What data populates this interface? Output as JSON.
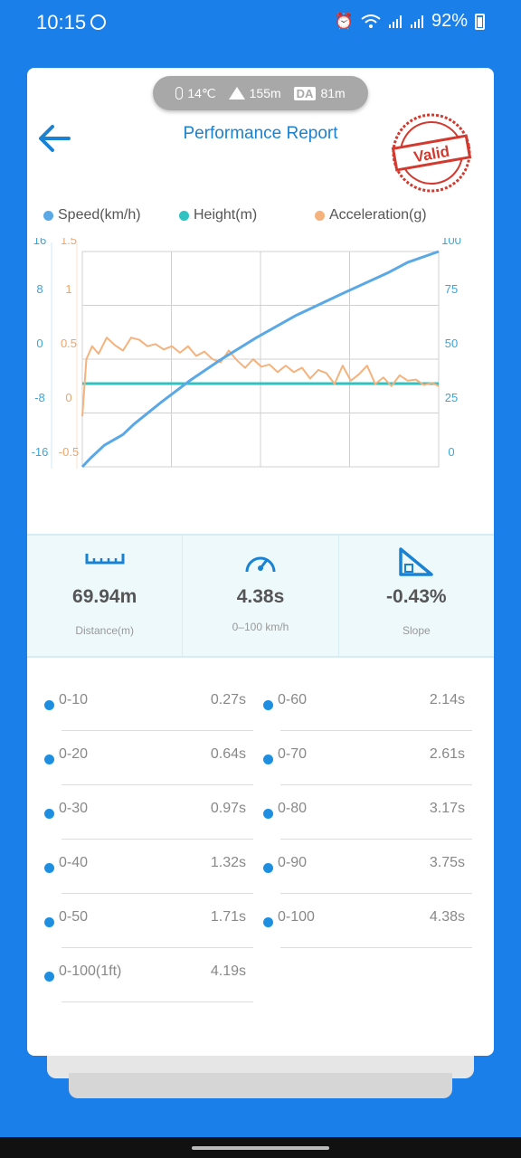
{
  "status_bar": {
    "time": "10:15",
    "battery": "92%",
    "icons": [
      "alarm-icon",
      "wifi-icon",
      "signal-icon",
      "signal-roaming-icon",
      "battery-icon"
    ]
  },
  "weather": {
    "temperature": "14℃",
    "altitude": "155m",
    "density_altitude_badge": "DA",
    "density_altitude": "81m"
  },
  "header": {
    "title": "Performance Report",
    "stamp_text": "Valid"
  },
  "colors": {
    "speed": "#5aa8e6",
    "height": "#30c1c1",
    "acceleration": "#f5b27c",
    "accent": "#1a82d2",
    "background": "#1a7fe8"
  },
  "chart_data": {
    "type": "line",
    "series": [
      {
        "name": "Speed(km/h)",
        "axis": "right",
        "x": [
          0,
          0.1,
          0.27,
          0.5,
          0.64,
          0.97,
          1.32,
          1.71,
          2.14,
          2.61,
          3.17,
          3.75,
          4.0,
          4.38
        ],
        "y": [
          0,
          4,
          10,
          15,
          20,
          30,
          40,
          50,
          60,
          70,
          80,
          90,
          95,
          100
        ]
      },
      {
        "name": "Height(m)",
        "axis": "left",
        "x": [
          0,
          4.38
        ],
        "y": [
          0,
          0
        ]
      },
      {
        "name": "Acceleration(g)",
        "axis": "left-inner",
        "x": [
          0,
          0.05,
          0.12,
          0.2,
          0.3,
          0.4,
          0.5,
          0.6,
          0.7,
          0.8,
          0.9,
          1.0,
          1.1,
          1.2,
          1.3,
          1.4,
          1.5,
          1.6,
          1.7,
          1.8,
          1.9,
          2.0,
          2.1,
          2.2,
          2.3,
          2.4,
          2.5,
          2.6,
          2.7,
          2.8,
          2.9,
          3.0,
          3.1,
          3.2,
          3.3,
          3.4,
          3.5,
          3.6,
          3.7,
          3.8,
          3.9,
          4.0,
          4.1,
          4.2,
          4.3,
          4.38
        ],
        "y": [
          -0.03,
          0.5,
          0.62,
          0.55,
          0.7,
          0.63,
          0.58,
          0.7,
          0.68,
          0.62,
          0.64,
          0.59,
          0.62,
          0.56,
          0.62,
          0.53,
          0.57,
          0.5,
          0.47,
          0.58,
          0.49,
          0.42,
          0.5,
          0.43,
          0.45,
          0.38,
          0.44,
          0.38,
          0.42,
          0.32,
          0.4,
          0.37,
          0.27,
          0.44,
          0.3,
          0.36,
          0.44,
          0.27,
          0.33,
          0.25,
          0.35,
          0.3,
          0.31,
          0.26,
          0.28,
          0.25
        ]
      }
    ],
    "axes": {
      "left_outer": {
        "ticks": [
          "16",
          "8",
          "0",
          "-8",
          "-16"
        ],
        "range": [
          -16,
          16
        ]
      },
      "left_inner": {
        "ticks": [
          "1.5",
          "1",
          "0.5",
          "0",
          "-0.5"
        ],
        "range": [
          -0.5,
          1.5
        ]
      },
      "right": {
        "ticks": [
          "100",
          "75",
          "50",
          "25",
          "0"
        ],
        "range": [
          0,
          100
        ]
      },
      "x_range": [
        0,
        4.38
      ]
    },
    "grid": true,
    "legend": "top"
  },
  "stats": [
    {
      "value": "69.94m",
      "label": "Distance(m)",
      "icon": "ruler-icon"
    },
    {
      "value": "4.38s",
      "label": "0–100 km/h",
      "icon": "speedometer-icon"
    },
    {
      "value": "-0.43%",
      "label": "Slope",
      "icon": "slope-icon"
    }
  ],
  "splits": [
    {
      "label": "0-10",
      "time": "0.27s"
    },
    {
      "label": "0-60",
      "time": "2.14s"
    },
    {
      "label": "0-20",
      "time": "0.64s"
    },
    {
      "label": "0-70",
      "time": "2.61s"
    },
    {
      "label": "0-30",
      "time": "0.97s"
    },
    {
      "label": "0-80",
      "time": "3.17s"
    },
    {
      "label": "0-40",
      "time": "1.32s"
    },
    {
      "label": "0-90",
      "time": "3.75s"
    },
    {
      "label": "0-50",
      "time": "1.71s"
    },
    {
      "label": "0-100",
      "time": "4.38s"
    },
    {
      "label": "0-100(1ft)",
      "time": "4.19s"
    }
  ]
}
